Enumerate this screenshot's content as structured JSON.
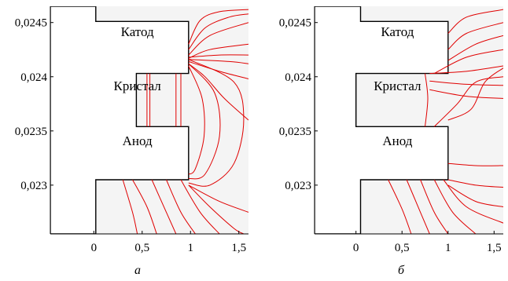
{
  "chart_data": [
    {
      "type": "line",
      "caption": "а",
      "x_ticks": [
        {
          "value": 0,
          "label": "0"
        },
        {
          "value": 0.5,
          "label": "0,5"
        },
        {
          "value": 1,
          "label": "1"
        },
        {
          "value": 1.5,
          "label": "1,5"
        }
      ],
      "y_ticks": [
        {
          "value": 0.0245,
          "label": "0,0245"
        },
        {
          "value": 0.024,
          "label": "0,024"
        },
        {
          "value": 0.0235,
          "label": "0,0235"
        },
        {
          "value": 0.023,
          "label": "0,023"
        }
      ],
      "xlim": [
        -0.45,
        1.6
      ],
      "ylim": [
        0.02255,
        0.02465
      ],
      "regions": [
        {
          "label": "Катод",
          "x": 0.45,
          "y": 0.02442
        },
        {
          "label": "Кристал",
          "x": 0.45,
          "y": 0.02392
        },
        {
          "label": "Анод",
          "x": 0.45,
          "y": 0.02341
        }
      ],
      "body_outline": [
        [
          -0.45,
          0.02465
        ],
        [
          0.02,
          0.02465
        ],
        [
          0.02,
          0.02451
        ],
        [
          0.98,
          0.02451
        ],
        [
          0.98,
          0.02403
        ],
        [
          0.44,
          0.02403
        ],
        [
          0.44,
          0.02354
        ],
        [
          0.98,
          0.02354
        ],
        [
          0.98,
          0.02305
        ],
        [
          0.02,
          0.02305
        ],
        [
          0.02,
          0.02255
        ],
        [
          -0.45,
          0.02255
        ]
      ],
      "curves": [
        [
          [
            0.98,
            0.0243
          ],
          [
            1.1,
            0.02452
          ],
          [
            1.3,
            0.0246
          ],
          [
            1.6,
            0.02462
          ]
        ],
        [
          [
            0.98,
            0.02425
          ],
          [
            1.15,
            0.02445
          ],
          [
            1.4,
            0.02455
          ],
          [
            1.6,
            0.02458
          ]
        ],
        [
          [
            0.98,
            0.0242
          ],
          [
            1.2,
            0.02438
          ],
          [
            1.6,
            0.0245
          ]
        ],
        [
          [
            0.98,
            0.02417
          ],
          [
            1.2,
            0.02425
          ],
          [
            1.6,
            0.0243
          ]
        ],
        [
          [
            0.98,
            0.02418
          ],
          [
            1.3,
            0.0242
          ],
          [
            1.6,
            0.0242
          ]
        ],
        [
          [
            0.98,
            0.02416
          ],
          [
            1.4,
            0.02414
          ],
          [
            1.6,
            0.02412
          ]
        ],
        [
          [
            0.98,
            0.02414
          ],
          [
            1.3,
            0.02405
          ],
          [
            1.6,
            0.02398
          ]
        ],
        [
          [
            0.98,
            0.02412
          ],
          [
            1.15,
            0.024
          ],
          [
            1.35,
            0.0238
          ],
          [
            1.6,
            0.0236
          ]
        ],
        [
          [
            0.98,
            0.02416
          ],
          [
            1.45,
            0.02395
          ],
          [
            1.55,
            0.0236
          ],
          [
            1.45,
            0.0232
          ],
          [
            1.2,
            0.023
          ],
          [
            0.98,
            0.02302
          ]
        ],
        [
          [
            0.98,
            0.02412
          ],
          [
            1.25,
            0.02385
          ],
          [
            1.3,
            0.02345
          ],
          [
            1.15,
            0.0231
          ],
          [
            0.98,
            0.02306
          ]
        ],
        [
          [
            0.98,
            0.0241
          ],
          [
            1.12,
            0.0238
          ],
          [
            1.14,
            0.02345
          ],
          [
            1.05,
            0.02315
          ],
          [
            0.98,
            0.0231
          ]
        ],
        [
          [
            0.55,
            0.02403
          ],
          [
            0.55,
            0.02354
          ]
        ],
        [
          [
            0.58,
            0.02403
          ],
          [
            0.58,
            0.02354
          ]
        ],
        [
          [
            0.85,
            0.02403
          ],
          [
            0.85,
            0.02354
          ]
        ],
        [
          [
            0.9,
            0.02403
          ],
          [
            0.9,
            0.02354
          ]
        ],
        [
          [
            0.98,
            0.023
          ],
          [
            1.3,
            0.02285
          ],
          [
            1.6,
            0.02275
          ]
        ],
        [
          [
            0.98,
            0.023
          ],
          [
            1.2,
            0.0228
          ],
          [
            1.45,
            0.0226
          ],
          [
            1.55,
            0.02255
          ]
        ],
        [
          [
            0.9,
            0.02305
          ],
          [
            1.1,
            0.02275
          ],
          [
            1.3,
            0.02255
          ]
        ],
        [
          [
            0.75,
            0.02305
          ],
          [
            0.9,
            0.02275
          ],
          [
            1.05,
            0.02255
          ]
        ],
        [
          [
            0.6,
            0.02305
          ],
          [
            0.75,
            0.02275
          ],
          [
            0.85,
            0.02255
          ]
        ],
        [
          [
            0.4,
            0.02305
          ],
          [
            0.55,
            0.0228
          ],
          [
            0.65,
            0.02255
          ]
        ],
        [
          [
            0.3,
            0.02305
          ],
          [
            0.4,
            0.02275
          ],
          [
            0.45,
            0.02255
          ]
        ]
      ]
    },
    {
      "type": "line",
      "caption": "б",
      "x_ticks": [
        {
          "value": 0,
          "label": "0"
        },
        {
          "value": 0.5,
          "label": "0,5"
        },
        {
          "value": 1,
          "label": "1"
        },
        {
          "value": 1.5,
          "label": "1,5"
        }
      ],
      "y_ticks": [
        {
          "value": 0.0245,
          "label": "0,0245"
        },
        {
          "value": 0.024,
          "label": "0,024"
        },
        {
          "value": 0.0235,
          "label": "0,0235"
        },
        {
          "value": 0.023,
          "label": "0,023"
        }
      ],
      "xlim": [
        -0.45,
        1.6
      ],
      "ylim": [
        0.02255,
        0.02465
      ],
      "regions": [
        {
          "label": "Катод",
          "x": 0.45,
          "y": 0.02442
        },
        {
          "label": "Кристал",
          "x": 0.45,
          "y": 0.02392
        },
        {
          "label": "Анод",
          "x": 0.45,
          "y": 0.02341
        }
      ],
      "body_outline": [
        [
          -0.45,
          0.02465
        ],
        [
          0.05,
          0.02465
        ],
        [
          0.05,
          0.02451
        ],
        [
          1.0,
          0.02451
        ],
        [
          1.0,
          0.02403
        ],
        [
          0.0,
          0.02403
        ],
        [
          0.0,
          0.02354
        ],
        [
          1.0,
          0.02354
        ],
        [
          1.0,
          0.02305
        ],
        [
          0.05,
          0.02305
        ],
        [
          0.05,
          0.02255
        ],
        [
          -0.45,
          0.02255
        ]
      ],
      "curves": [
        [
          [
            1.0,
            0.0244
          ],
          [
            1.2,
            0.02455
          ],
          [
            1.6,
            0.02462
          ]
        ],
        [
          [
            1.0,
            0.02425
          ],
          [
            1.2,
            0.0244
          ],
          [
            1.6,
            0.0245
          ]
        ],
        [
          [
            1.0,
            0.02415
          ],
          [
            1.3,
            0.0243
          ],
          [
            1.6,
            0.02438
          ]
        ],
        [
          [
            0.85,
            0.02403
          ],
          [
            1.2,
            0.02418
          ],
          [
            1.6,
            0.02425
          ]
        ],
        [
          [
            0.8,
            0.02403
          ],
          [
            1.2,
            0.02405
          ],
          [
            1.6,
            0.0241
          ]
        ],
        [
          [
            0.8,
            0.02396
          ],
          [
            1.2,
            0.02393
          ],
          [
            1.6,
            0.02392
          ]
        ],
        [
          [
            0.8,
            0.02388
          ],
          [
            1.2,
            0.02382
          ],
          [
            1.6,
            0.0238
          ]
        ],
        [
          [
            0.85,
            0.02354
          ],
          [
            1.1,
            0.02375
          ],
          [
            1.3,
            0.02395
          ],
          [
            1.6,
            0.024
          ]
        ],
        [
          [
            0.75,
            0.02403
          ],
          [
            0.78,
            0.0238
          ],
          [
            0.75,
            0.02354
          ]
        ],
        [
          [
            1.0,
            0.0236
          ],
          [
            1.25,
            0.0237
          ],
          [
            1.4,
            0.02395
          ],
          [
            1.6,
            0.02408
          ]
        ],
        [
          [
            1.0,
            0.0232
          ],
          [
            1.3,
            0.02318
          ],
          [
            1.6,
            0.02318
          ]
        ],
        [
          [
            1.0,
            0.02305
          ],
          [
            1.3,
            0.023
          ],
          [
            1.6,
            0.02298
          ]
        ],
        [
          [
            1.0,
            0.023
          ],
          [
            1.3,
            0.02285
          ],
          [
            1.6,
            0.0228
          ]
        ],
        [
          [
            0.95,
            0.02305
          ],
          [
            1.2,
            0.0228
          ],
          [
            1.6,
            0.02265
          ]
        ],
        [
          [
            0.85,
            0.02305
          ],
          [
            1.05,
            0.02275
          ],
          [
            1.3,
            0.02255
          ]
        ],
        [
          [
            0.7,
            0.02305
          ],
          [
            0.85,
            0.02275
          ],
          [
            1.0,
            0.02255
          ]
        ],
        [
          [
            0.55,
            0.02305
          ],
          [
            0.7,
            0.02275
          ],
          [
            0.8,
            0.02255
          ]
        ],
        [
          [
            0.35,
            0.02305
          ],
          [
            0.5,
            0.02278
          ],
          [
            0.6,
            0.02255
          ]
        ]
      ]
    }
  ]
}
